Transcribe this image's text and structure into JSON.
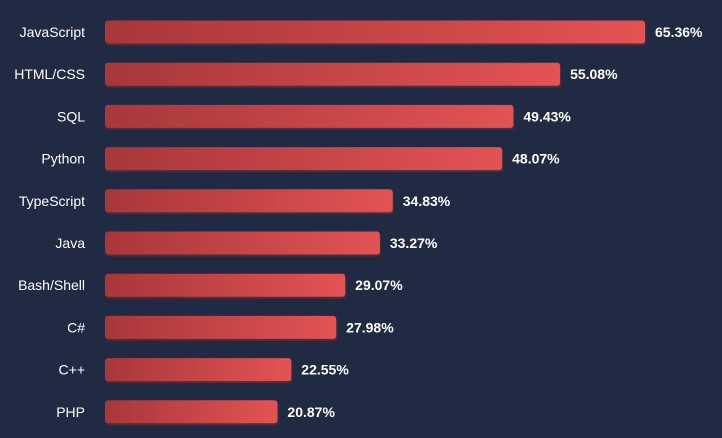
{
  "chart_data": {
    "type": "bar",
    "orientation": "horizontal",
    "categories": [
      "JavaScript",
      "HTML/CSS",
      "SQL",
      "Python",
      "TypeScript",
      "Java",
      "Bash/Shell",
      "C#",
      "C++",
      "PHP"
    ],
    "values": [
      65.36,
      55.08,
      49.43,
      48.07,
      34.83,
      33.27,
      29.07,
      27.98,
      22.55,
      20.87
    ],
    "value_labels": [
      "65.36%",
      "55.08%",
      "49.43%",
      "48.07%",
      "34.83%",
      "33.27%",
      "29.07%",
      "27.98%",
      "22.55%",
      "20.87%"
    ],
    "unit": "%",
    "xlim": [
      0,
      65.36
    ],
    "grid": false,
    "legend": "none",
    "title": "",
    "xlabel": "",
    "ylabel": ""
  },
  "colors": {
    "background": "#212a43",
    "bar_dark": "#a8373a",
    "bar_light": "#e35354",
    "bar_shadow": "#7d2a2d",
    "text": "#ffffff"
  }
}
